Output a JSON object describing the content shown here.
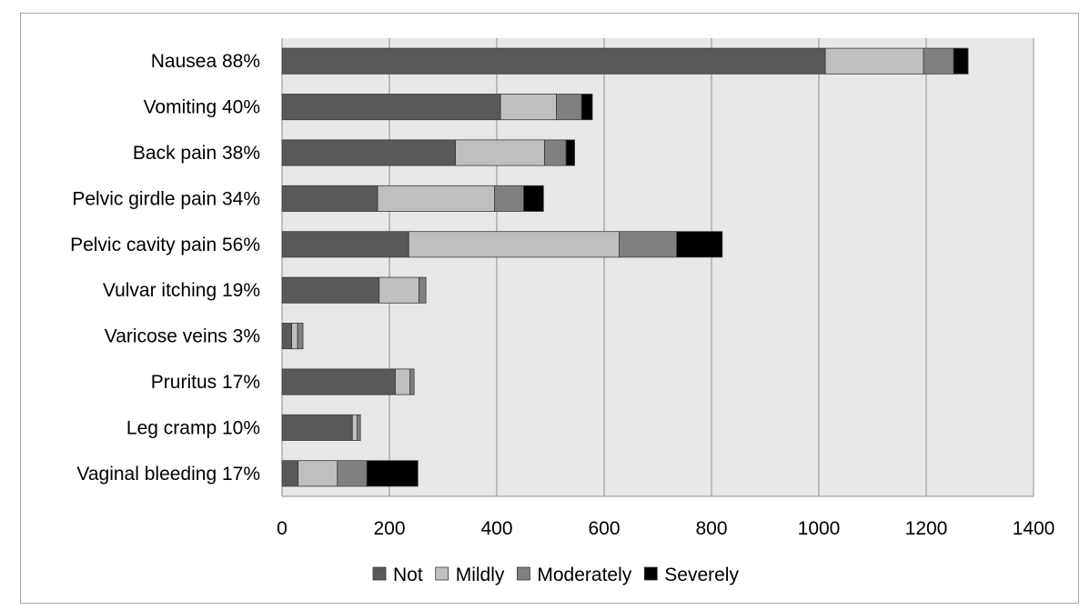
{
  "chart_data": {
    "type": "bar",
    "orientation": "horizontal",
    "stacked": true,
    "categories": [
      "Nausea  88%",
      "Vomiting  40%",
      "Back pain  38%",
      "Pelvic girdle pain  34%",
      "Pelvic cavity pain  56%",
      "Vulvar itching  19%",
      "Varicose veins  3%",
      "Pruritus  17%",
      "Leg cramp  10%",
      "Vaginal bleeding  17%"
    ],
    "series": [
      {
        "name": "Not",
        "color": "#595959",
        "values": [
          1012,
          407,
          323,
          178,
          236,
          181,
          18,
          211,
          131,
          30
        ]
      },
      {
        "name": "Mildly",
        "color": "#bfbfbf",
        "values": [
          183,
          104,
          166,
          218,
          392,
          74,
          11,
          27,
          9,
          73
        ]
      },
      {
        "name": "Moderately",
        "color": "#808080",
        "values": [
          56,
          47,
          40,
          54,
          107,
          13,
          10,
          8,
          6,
          55
        ]
      },
      {
        "name": "Severely",
        "color": "#000000",
        "values": [
          27,
          20,
          16,
          37,
          85,
          0,
          0,
          0,
          0,
          95
        ]
      }
    ],
    "xlim": [
      0,
      1400
    ],
    "xticks": [
      0,
      200,
      400,
      600,
      800,
      1000,
      1200,
      1400
    ],
    "grid": true,
    "legend_position": "bottom",
    "plot_background": "#e8e8e8",
    "title": "",
    "xlabel": "",
    "ylabel": ""
  }
}
